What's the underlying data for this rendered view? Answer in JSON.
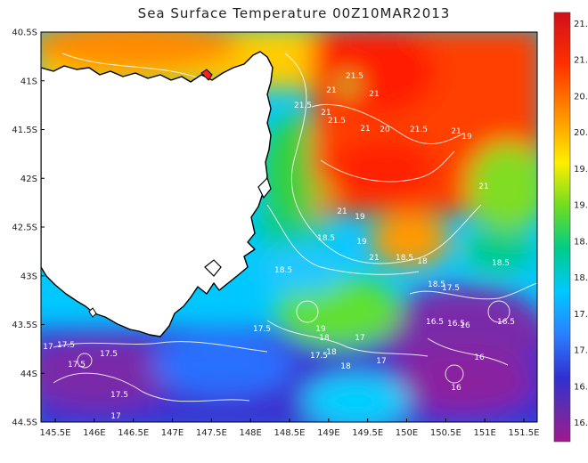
{
  "title": "Sea Surface Temperature 00Z10MAR2013",
  "y_ticks": [
    "40.5S",
    "41S",
    "41.5S",
    "42S",
    "42.5S",
    "43S",
    "43.5S",
    "44S",
    "44.5S"
  ],
  "x_ticks": [
    "145.5E",
    "146E",
    "146.5E",
    "147E",
    "147.5E",
    "148E",
    "148.5E",
    "149E",
    "149.5E",
    "150E",
    "150.5E",
    "151E",
    "151.5E"
  ],
  "colorbar_ticks": [
    "21.",
    "21.",
    "20.",
    "20.",
    "19.",
    "19.",
    "18.",
    "18.",
    "17.",
    "17.",
    "16.",
    "16."
  ],
  "contour_labels": [
    "21.5",
    "21",
    "21",
    "21.5",
    "21",
    "21.5",
    "21",
    "20",
    "21.5",
    "21",
    "19",
    "21",
    "21",
    "19",
    "18.5",
    "19",
    "21",
    "18.5",
    "18",
    "18.5",
    "18.5",
    "17.5",
    "18.5",
    "17.5",
    "19",
    "18",
    "16.5",
    "16.5",
    "16",
    "16.5",
    "18",
    "17.5",
    "17",
    "16",
    "17",
    "17.5",
    "17.5",
    "17.5",
    "18",
    "17",
    "17.5",
    "17",
    "16"
  ],
  "colors": {
    "land": "#ffffff",
    "coastline": "#000000",
    "contour": "#ffffff"
  }
}
